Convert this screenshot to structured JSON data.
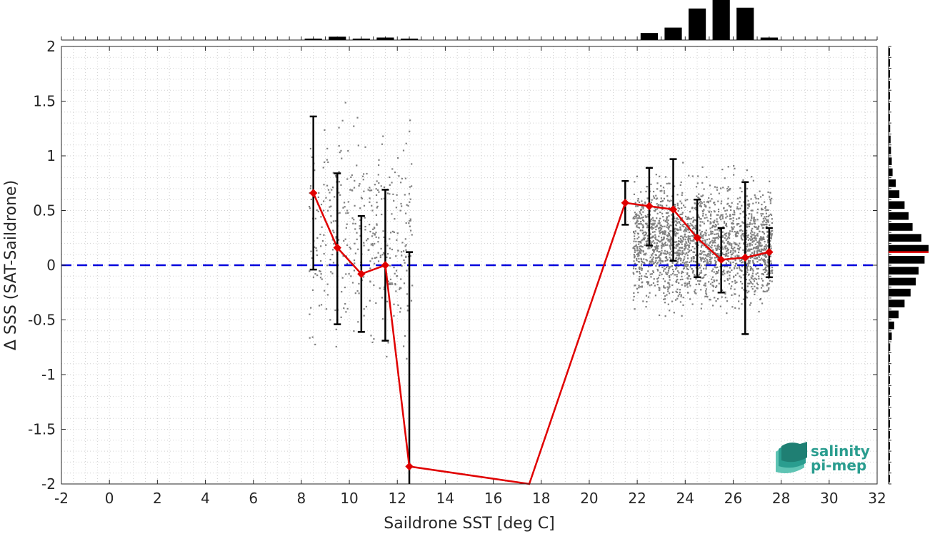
{
  "chart_data": {
    "type": "scatter",
    "xlabel": "Saildrone SST [deg C]",
    "ylabel": "Δ SSS (SAT-Saildrone)",
    "xlim": [
      -2,
      32
    ],
    "ylim": [
      -2,
      2
    ],
    "x_ticks": [
      -2,
      0,
      2,
      4,
      6,
      8,
      10,
      12,
      14,
      16,
      18,
      20,
      22,
      24,
      26,
      28,
      30,
      32
    ],
    "y_ticks": [
      -2,
      -1.5,
      -1,
      -0.5,
      0,
      0.5,
      1,
      1.5,
      2
    ],
    "grid": "minor dotted",
    "reference_line": {
      "y": 0,
      "style": "dashed",
      "color": "#0000dd"
    },
    "scatter_color": "#808080",
    "scatter_clusters": [
      {
        "x_range": [
          8.3,
          12.6
        ],
        "y_center": 0.3,
        "y_spread": 0.9,
        "n": 420
      },
      {
        "x_range": [
          21.8,
          27.6
        ],
        "y_center": 0.2,
        "y_spread": 0.5,
        "n": 2200
      }
    ],
    "binned_mean": {
      "color": "#e00000",
      "x": [
        8.5,
        9.5,
        10.5,
        11.5,
        12.5,
        17.5,
        21.5,
        22.5,
        23.5,
        24.5,
        25.5,
        26.5,
        27.5
      ],
      "y": [
        0.66,
        0.16,
        -0.08,
        0.0,
        -1.84,
        -2.0,
        0.57,
        0.54,
        0.51,
        0.25,
        0.05,
        0.07,
        0.12
      ],
      "marker_x": [
        8.5,
        9.5,
        10.5,
        11.5,
        12.5,
        21.5,
        22.5,
        23.5,
        24.5,
        25.5,
        26.5,
        27.5
      ],
      "marker_y": [
        0.66,
        0.16,
        -0.08,
        0.0,
        -1.84,
        0.57,
        0.54,
        0.51,
        0.25,
        0.05,
        0.07,
        0.12
      ]
    },
    "error_bars": [
      {
        "x": 8.5,
        "low": -0.04,
        "high": 1.36
      },
      {
        "x": 9.5,
        "low": -0.54,
        "high": 0.84
      },
      {
        "x": 10.5,
        "low": -0.61,
        "high": 0.45
      },
      {
        "x": 11.5,
        "low": -0.69,
        "high": 0.69
      },
      {
        "x": 12.5,
        "low": -2.0,
        "high": 0.12
      },
      {
        "x": 21.5,
        "low": 0.37,
        "high": 0.77
      },
      {
        "x": 22.5,
        "low": 0.18,
        "high": 0.89
      },
      {
        "x": 23.5,
        "low": 0.04,
        "high": 0.97
      },
      {
        "x": 24.5,
        "low": -0.11,
        "high": 0.6
      },
      {
        "x": 25.5,
        "low": -0.25,
        "high": 0.34
      },
      {
        "x": 26.5,
        "low": -0.63,
        "high": 0.76
      },
      {
        "x": 27.5,
        "low": -0.11,
        "high": 0.34
      }
    ],
    "top_histogram": {
      "bin_centers": [
        8.5,
        9.5,
        10.5,
        11.5,
        12.5,
        22.5,
        23.5,
        24.5,
        25.5,
        26.5,
        27.5
      ],
      "relative_counts": [
        0.02,
        0.08,
        0.03,
        0.06,
        0.02,
        0.17,
        0.3,
        0.76,
        1.0,
        0.78,
        0.06
      ]
    },
    "right_histogram": {
      "bin_edges": [
        -2.0,
        -1.9,
        -1.8,
        -1.7,
        -1.6,
        -1.5,
        -1.4,
        -1.3,
        -1.2,
        -1.1,
        -1.0,
        -0.9,
        -0.8,
        -0.7,
        -0.6,
        -0.5,
        -0.4,
        -0.3,
        -0.2,
        -0.1,
        0.0,
        0.1,
        0.2,
        0.3,
        0.4,
        0.5,
        0.6,
        0.7,
        0.8,
        0.9,
        1.0,
        1.1,
        1.2,
        1.3,
        1.4,
        1.5,
        1.6,
        1.7,
        1.8,
        1.9,
        2.0
      ],
      "relative_counts": [
        0.01,
        0.01,
        0.01,
        0.01,
        0.01,
        0.01,
        0.01,
        0.01,
        0.01,
        0.01,
        0.02,
        0.03,
        0.04,
        0.08,
        0.14,
        0.25,
        0.4,
        0.55,
        0.68,
        0.75,
        0.9,
        1.0,
        0.82,
        0.6,
        0.5,
        0.4,
        0.27,
        0.18,
        0.1,
        0.08,
        0.06,
        0.05,
        0.04,
        0.03,
        0.02,
        0.02,
        0.01,
        0.01,
        0.01,
        0.01
      ],
      "mean_line": {
        "y": 0.12,
        "color": "#e00000"
      }
    }
  },
  "logo": {
    "line1": "salinity",
    "line2": "pi-mep",
    "color": "#2a9d8f"
  }
}
